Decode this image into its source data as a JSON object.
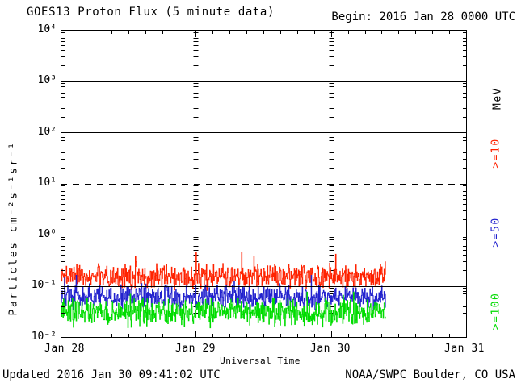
{
  "header": {
    "title": "GOES13 Proton Flux (5 minute data)",
    "begin_label": "Begin: 2016 Jan 28 0000 UTC"
  },
  "y_axis": {
    "label": "Particles cm⁻²s⁻¹sr⁻¹",
    "tick_labels": [
      "10⁴",
      "10³",
      "10²",
      "10¹",
      "10⁰",
      "10⁻¹",
      "10⁻²"
    ]
  },
  "x_axis": {
    "label": "Universal Time",
    "tick_labels": [
      "Jan 28",
      "Jan 29",
      "Jan 30",
      "Jan 31"
    ]
  },
  "right_axis": {
    "unit_label": "MeV",
    "series_labels": [
      {
        "text": ">=10",
        "color": "#FF2200"
      },
      {
        "text": ">=50",
        "color": "#2222CE"
      },
      {
        "text": ">=100",
        "color": "#00DC00"
      }
    ]
  },
  "footer": {
    "updated": "Updated 2016 Jan 30 09:41:02 UTC",
    "source": "NOAA/SWPC Boulder, CO USA"
  },
  "chart_data": {
    "type": "line",
    "title": "GOES13 Proton Flux (5 minute data)",
    "xlabel": "Universal Time",
    "ylabel": "Particles cm⁻²s⁻¹sr⁻¹",
    "y_scale": "log",
    "ylim": [
      0.01,
      10000
    ],
    "x_categories": [
      "Jan 28",
      "Jan 29",
      "Jan 30",
      "Jan 31"
    ],
    "x_span_days": 3,
    "data_start": "2016 Jan 28 0000 UTC",
    "data_end": "2016 Jan 30 0940 UTC",
    "data_end_day_fraction": 2.403,
    "sample_minutes": 5,
    "gridlines": {
      "solid_at": [
        1000,
        100,
        1,
        0.1
      ],
      "dashed_at": [
        10
      ]
    },
    "interior_day_tick_columns": [
      1,
      2
    ],
    "series": [
      {
        "name": ">=10 MeV",
        "color": "#FF2200",
        "typical": 0.15,
        "min": 0.07,
        "max": 0.45
      },
      {
        "name": ">=50 MeV",
        "color": "#2222CE",
        "typical": 0.06,
        "min": 0.03,
        "max": 0.16
      },
      {
        "name": ">=100 MeV",
        "color": "#00DC00",
        "typical": 0.03,
        "min": 0.0125,
        "max": 0.075
      }
    ],
    "noise_log10_amp": [
      0.28,
      0.27,
      0.31
    ],
    "seed": 20160128
  }
}
